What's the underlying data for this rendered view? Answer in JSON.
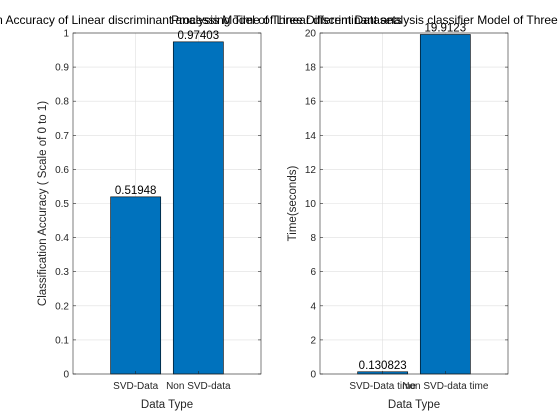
{
  "chart_data": [
    {
      "type": "bar",
      "title": "Classification Accuracy of Linear discriminant analysis Model of Three Different Datasets",
      "xlabel": "Data Type",
      "ylabel": "Classification Accuracy ( Scale of 0 to 1)",
      "categories": [
        "SVD-Data",
        "Non SVD-data"
      ],
      "values": [
        0.51948,
        0.97403
      ],
      "data_labels": [
        "0.51948",
        "0.97403"
      ],
      "ylim": [
        0,
        1
      ],
      "yticks": [
        0,
        0.1,
        0.2,
        0.3,
        0.4,
        0.5,
        0.6,
        0.7,
        0.8,
        0.9,
        1
      ],
      "ytick_labels": [
        "0",
        "0.1",
        "0.2",
        "0.3",
        "0.4",
        "0.5",
        "0.6",
        "0.7",
        "0.8",
        "0.9",
        "1"
      ],
      "grid": true,
      "bar_color": "#0072BD"
    },
    {
      "type": "bar",
      "title": "Processing Time of Linear discriminant analysis classifier Model of Three Different Datasets",
      "xlabel": "Data Type",
      "ylabel": "Time(seconds)",
      "categories": [
        "SVD-Data time",
        "Non SVD-data time"
      ],
      "values": [
        0.130823,
        19.9123
      ],
      "data_labels": [
        "0.130823",
        "19.9123"
      ],
      "ylim": [
        0,
        20
      ],
      "yticks": [
        0,
        2,
        4,
        6,
        8,
        10,
        12,
        14,
        16,
        18,
        20
      ],
      "ytick_labels": [
        "0",
        "2",
        "4",
        "6",
        "8",
        "10",
        "12",
        "14",
        "16",
        "18",
        "20"
      ],
      "grid": true,
      "bar_color": "#0072BD"
    }
  ]
}
